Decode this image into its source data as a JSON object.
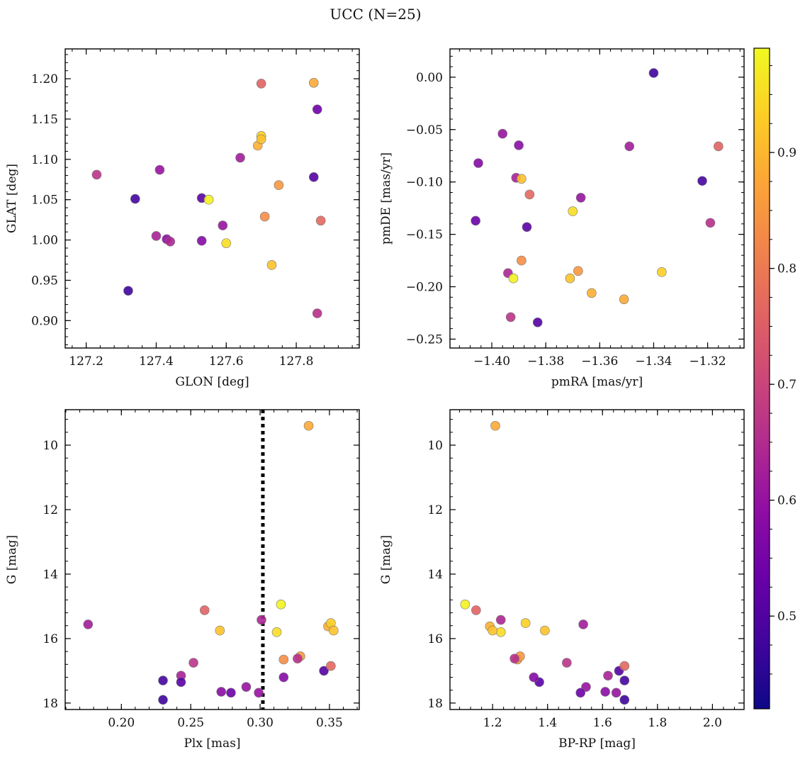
{
  "chart_data": {
    "type": "scatter",
    "title": "UCC (N=25)",
    "colorbar": {
      "colormap": "plasma",
      "vmin": 0.42,
      "vmax": 0.99,
      "ticks": [
        0.5,
        0.6,
        0.7,
        0.8,
        0.9
      ],
      "tick_labels": [
        "0.5",
        "0.6",
        "0.7",
        "0.8",
        "0.9"
      ]
    },
    "points": [
      {
        "glon": 127.23,
        "glat": 1.081,
        "pmra": -1.393,
        "pmde": -0.229,
        "plx": 0.252,
        "g": 16.75,
        "bprp": 1.47,
        "c": 0.64
      },
      {
        "glon": 127.34,
        "glat": 1.051,
        "pmra": -1.322,
        "pmde": -0.099,
        "plx": 0.23,
        "g": 17.3,
        "bprp": 1.68,
        "c": 0.44
      },
      {
        "glon": 127.32,
        "glat": 0.937,
        "pmra": -1.34,
        "pmde": 0.004,
        "plx": 0.23,
        "g": 17.9,
        "bprp": 1.68,
        "c": 0.43
      },
      {
        "glon": 127.41,
        "glat": 1.087,
        "pmra": -1.396,
        "pmde": -0.054,
        "plx": 0.29,
        "g": 17.5,
        "bprp": 1.54,
        "c": 0.57
      },
      {
        "glon": 127.4,
        "glat": 1.005,
        "pmra": -1.391,
        "pmde": -0.096,
        "plx": 0.243,
        "g": 17.15,
        "bprp": 1.62,
        "c": 0.6
      },
      {
        "glon": 127.43,
        "glat": 1.001,
        "pmra": -1.39,
        "pmde": -0.065,
        "plx": 0.272,
        "g": 17.65,
        "bprp": 1.61,
        "c": 0.55
      },
      {
        "glon": 127.44,
        "glat": 0.998,
        "pmra": -1.394,
        "pmde": -0.187,
        "plx": 0.301,
        "g": 15.42,
        "bprp": 1.23,
        "c": 0.61
      },
      {
        "glon": 127.53,
        "glat": 1.052,
        "pmra": -1.387,
        "pmde": -0.143,
        "plx": 0.243,
        "g": 17.35,
        "bprp": 1.37,
        "c": 0.47
      },
      {
        "glon": 127.53,
        "glat": 0.999,
        "pmra": -1.405,
        "pmde": -0.082,
        "plx": 0.317,
        "g": 17.2,
        "bprp": 1.35,
        "c": 0.54
      },
      {
        "glon": 127.55,
        "glat": 1.05,
        "pmra": -1.392,
        "pmde": -0.192,
        "plx": 0.315,
        "g": 14.94,
        "bprp": 1.1,
        "c": 0.98
      },
      {
        "glon": 127.59,
        "glat": 1.018,
        "pmra": -1.367,
        "pmde": -0.115,
        "plx": 0.299,
        "g": 17.68,
        "bprp": 1.65,
        "c": 0.57
      },
      {
        "glon": 127.6,
        "glat": 0.996,
        "pmra": -1.37,
        "pmde": -0.128,
        "plx": 0.312,
        "g": 15.8,
        "bprp": 1.23,
        "c": 0.95
      },
      {
        "glon": 127.64,
        "glat": 1.102,
        "pmra": -1.349,
        "pmde": -0.066,
        "plx": 0.176,
        "g": 15.56,
        "bprp": 1.53,
        "c": 0.59
      },
      {
        "glon": 127.69,
        "glat": 1.117,
        "pmra": -1.363,
        "pmde": -0.206,
        "plx": 0.349,
        "g": 15.62,
        "bprp": 1.19,
        "c": 0.88
      },
      {
        "glon": 127.7,
        "glat": 1.129,
        "pmra": -1.337,
        "pmde": -0.186,
        "plx": 0.351,
        "g": 15.52,
        "bprp": 1.32,
        "c": 0.93
      },
      {
        "glon": 127.7,
        "glat": 1.125,
        "pmra": -1.371,
        "pmde": -0.192,
        "plx": 0.271,
        "g": 15.75,
        "bprp": 1.39,
        "c": 0.91
      },
      {
        "glon": 127.7,
        "glat": 1.194,
        "pmra": -1.316,
        "pmde": -0.066,
        "plx": 0.26,
        "g": 15.12,
        "bprp": 1.14,
        "c": 0.74
      },
      {
        "glon": 127.71,
        "glat": 1.029,
        "pmra": -1.389,
        "pmde": -0.175,
        "plx": 0.317,
        "g": 16.65,
        "bprp": 1.29,
        "c": 0.82
      },
      {
        "glon": 127.73,
        "glat": 0.969,
        "pmra": -1.389,
        "pmde": -0.097,
        "plx": 0.353,
        "g": 15.75,
        "bprp": 1.2,
        "c": 0.91
      },
      {
        "glon": 127.75,
        "glat": 1.068,
        "pmra": -1.368,
        "pmde": -0.185,
        "plx": 0.329,
        "g": 16.55,
        "bprp": 1.3,
        "c": 0.84
      },
      {
        "glon": 127.85,
        "glat": 1.195,
        "pmra": -1.351,
        "pmde": -0.212,
        "plx": 0.335,
        "g": 9.4,
        "bprp": 1.21,
        "c": 0.87
      },
      {
        "glon": 127.85,
        "glat": 1.078,
        "pmra": -1.383,
        "pmde": -0.234,
        "plx": 0.346,
        "g": 17.0,
        "bprp": 1.66,
        "c": 0.46
      },
      {
        "glon": 127.86,
        "glat": 1.162,
        "pmra": -1.406,
        "pmde": -0.137,
        "plx": 0.279,
        "g": 17.68,
        "bprp": 1.52,
        "c": 0.5
      },
      {
        "glon": 127.87,
        "glat": 1.024,
        "pmra": -1.386,
        "pmde": -0.112,
        "plx": 0.351,
        "g": 16.85,
        "bprp": 1.68,
        "c": 0.75
      },
      {
        "glon": 127.86,
        "glat": 0.909,
        "pmra": -1.319,
        "pmde": -0.139,
        "plx": 0.327,
        "g": 16.62,
        "bprp": 1.28,
        "c": 0.63
      }
    ],
    "panels": [
      {
        "key": "sky",
        "xfield": "glon",
        "yfield": "glat",
        "xlabel": "GLON [deg]",
        "ylabel": "GLAT [deg]",
        "xlim": [
          127.14,
          127.98
        ],
        "ylim": [
          0.866,
          1.237
        ],
        "y_inverted": false,
        "xticks": [
          127.2,
          127.4,
          127.6,
          127.8
        ],
        "xtick_labels": [
          "127.2",
          "127.4",
          "127.6",
          "127.8"
        ],
        "yticks": [
          0.9,
          0.95,
          1.0,
          1.05,
          1.1,
          1.15,
          1.2
        ],
        "ytick_labels": [
          "0.90",
          "0.95",
          "1.00",
          "1.05",
          "1.10",
          "1.15",
          "1.20"
        ]
      },
      {
        "key": "pm",
        "xfield": "pmra",
        "yfield": "pmde",
        "xlabel": "pmRA [mas/yr]",
        "ylabel": "pmDE [mas/yr]",
        "xlim": [
          -1.4155,
          -1.3065
        ],
        "ylim": [
          -0.2585,
          0.027
        ],
        "y_inverted": false,
        "xticks": [
          -1.4,
          -1.38,
          -1.36,
          -1.34,
          -1.32
        ],
        "xtick_labels": [
          "−1.40",
          "−1.38",
          "−1.36",
          "−1.34",
          "−1.32"
        ],
        "yticks": [
          -0.25,
          -0.2,
          -0.15,
          -0.1,
          -0.05,
          0.0
        ],
        "ytick_labels": [
          "−0.25",
          "−0.20",
          "−0.15",
          "−0.10",
          "−0.05",
          "0.00"
        ]
      },
      {
        "key": "plx",
        "xfield": "plx",
        "yfield": "g",
        "xlabel": "Plx [mas]",
        "ylabel": "G [mag]",
        "xlim": [
          0.1595,
          0.3715
        ],
        "ylim": [
          8.9,
          18.2
        ],
        "y_inverted": true,
        "vline": 0.302,
        "xticks": [
          0.2,
          0.25,
          0.3,
          0.35
        ],
        "xtick_labels": [
          "0.20",
          "0.25",
          "0.30",
          "0.35"
        ],
        "yticks": [
          10,
          12,
          14,
          16,
          18
        ],
        "ytick_labels": [
          "10",
          "12",
          "14",
          "16",
          "18"
        ]
      },
      {
        "key": "cmd",
        "xfield": "bprp",
        "yfield": "g",
        "xlabel": "BP-RP [mag]",
        "ylabel": "G [mag]",
        "xlim": [
          1.045,
          2.115
        ],
        "ylim": [
          8.9,
          18.2
        ],
        "y_inverted": true,
        "xticks": [
          1.2,
          1.4,
          1.6,
          1.8,
          2.0
        ],
        "xtick_labels": [
          "1.2",
          "1.4",
          "1.6",
          "1.8",
          "2.0"
        ],
        "yticks": [
          10,
          12,
          14,
          16,
          18
        ],
        "ytick_labels": [
          "10",
          "12",
          "14",
          "16",
          "18"
        ]
      }
    ]
  }
}
